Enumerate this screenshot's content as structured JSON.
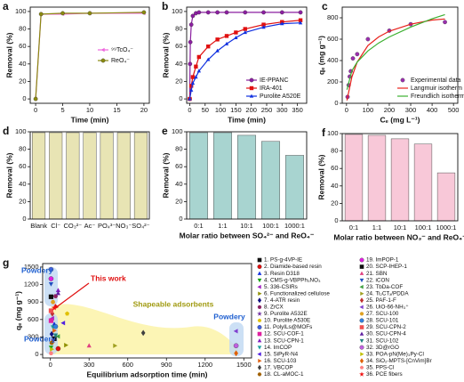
{
  "chart_data": [
    {
      "type": "line",
      "panel": "a",
      "xlabel": "Time (min)",
      "ylabel": "Removal (%)",
      "xlim": [
        -1,
        21
      ],
      "xticks": [
        0,
        5,
        10,
        15,
        20
      ],
      "ylim": [
        -5,
        105
      ],
      "yticks": [
        0,
        20,
        40,
        60,
        80,
        100
      ],
      "legend": "center right",
      "series": [
        {
          "name": "⁹⁹TcO₄⁻",
          "color": "#ee66dd",
          "marker": "<",
          "line": true,
          "x": [
            0,
            1,
            5,
            10,
            20
          ],
          "values": [
            0,
            97,
            97,
            98,
            98
          ]
        },
        {
          "name": "ReO₄⁻",
          "color": "#8a8a10",
          "marker": "o",
          "line": true,
          "x": [
            0,
            1,
            5,
            10,
            20
          ],
          "values": [
            0,
            97,
            98,
            98,
            99
          ]
        }
      ]
    },
    {
      "type": "line",
      "panel": "b",
      "xlabel": "Time (min)",
      "ylabel": "Removal (%)",
      "xlim": [
        -10,
        380
      ],
      "xticks": [
        0,
        50,
        100,
        150,
        200,
        250,
        300,
        350
      ],
      "ylim": [
        -5,
        105
      ],
      "yticks": [
        0,
        20,
        40,
        60,
        80,
        100
      ],
      "legend": "lower right",
      "series": [
        {
          "name": "IE-PPANC",
          "color": "#8b1fa0",
          "marker": "o",
          "line": true,
          "x": [
            0,
            1,
            2,
            5,
            10,
            20,
            30,
            60,
            90,
            120,
            180,
            240,
            300,
            360
          ],
          "values": [
            0,
            40,
            65,
            85,
            95,
            98,
            99,
            99,
            99,
            99,
            99,
            99,
            99,
            99
          ]
        },
        {
          "name": "IRA-401",
          "color": "#e01010",
          "marker": "s",
          "line": true,
          "x": [
            0,
            5,
            10,
            20,
            30,
            60,
            90,
            120,
            150,
            180,
            240,
            300,
            360
          ],
          "values": [
            0,
            15,
            25,
            37,
            48,
            60,
            68,
            72,
            76,
            80,
            85,
            88,
            90
          ]
        },
        {
          "name": "Purolite A520E",
          "color": "#1030e0",
          "marker": "^",
          "line": true,
          "x": [
            0,
            5,
            10,
            20,
            30,
            60,
            90,
            120,
            150,
            180,
            240,
            300,
            360
          ],
          "values": [
            0,
            10,
            18,
            25,
            32,
            45,
            55,
            63,
            70,
            76,
            82,
            86,
            87
          ]
        }
      ]
    },
    {
      "type": "line",
      "panel": "c",
      "xlabel": "Cₑ (mg L⁻¹)",
      "ylabel": "qₑ (mg g⁻¹)",
      "xlim": [
        -20,
        520
      ],
      "xticks": [
        0,
        100,
        200,
        300,
        400,
        500
      ],
      "ylim": [
        0,
        900
      ],
      "yticks": [
        0,
        200,
        400,
        600,
        800
      ],
      "legend": "lower right",
      "series": [
        {
          "name": "Experimental data",
          "color": "#9b2fae",
          "marker": "o",
          "line": false,
          "x": [
            5,
            10,
            15,
            20,
            30,
            50,
            100,
            200,
            300,
            460
          ],
          "values": [
            60,
            170,
            250,
            300,
            420,
            460,
            600,
            680,
            740,
            760
          ]
        },
        {
          "name": "Langmuir isotherm",
          "color": "#e8201a",
          "line": true,
          "x": [
            2,
            25,
            50,
            100,
            150,
            200,
            300,
            400,
            460
          ],
          "values": [
            27,
            245,
            386,
            540,
            621,
            675,
            740,
            779,
            789
          ]
        },
        {
          "name": "Freundlich isotherm",
          "color": "#3cb030",
          "line": true,
          "x": [
            2,
            25,
            50,
            100,
            150,
            200,
            300,
            400,
            460
          ],
          "values": [
            127,
            303,
            386,
            490,
            564,
            621,
            713,
            791,
            830
          ]
        }
      ]
    },
    {
      "type": "bar",
      "panel": "d",
      "ylabel": "Removal (%)",
      "color": "#e8e4b4",
      "ylim": [
        0,
        100
      ],
      "yticks": [
        0,
        20,
        40,
        60,
        80,
        100
      ],
      "categories": [
        "Blank",
        "Cl⁻",
        "CO₃²⁻",
        "Ac⁻",
        "PO₄³⁻",
        "NO₃⁻",
        "SO₄²⁻"
      ],
      "values": [
        99,
        99,
        99,
        99,
        99,
        99,
        99
      ]
    },
    {
      "type": "bar",
      "panel": "e",
      "xlabel": "Molar ratio between SO₄²⁻ and ReO₄⁻",
      "ylabel": "Removal (%)",
      "color": "#a8d4d0",
      "ylim": [
        0,
        100
      ],
      "yticks": [
        0,
        20,
        40,
        60,
        80,
        100
      ],
      "categories": [
        "0:1",
        "1:1",
        "10:1",
        "100:1",
        "1000:1"
      ],
      "values": [
        99,
        99,
        96,
        89,
        73
      ]
    },
    {
      "type": "bar",
      "panel": "f",
      "xlabel": "Molar ratio between NO₃⁻ and ReO₄⁻",
      "ylabel": "Removal (%)",
      "color": "#f8c8d8",
      "ylim": [
        0,
        100
      ],
      "yticks": [
        0,
        20,
        40,
        60,
        80,
        100
      ],
      "categories": [
        "0:1",
        "1:1",
        "10:1",
        "100:1",
        "1000:1"
      ],
      "values": [
        99,
        98,
        94,
        88,
        55
      ]
    },
    {
      "type": "scatter",
      "panel": "g",
      "xlabel": "Equilibrium adsorption time (min)",
      "ylabel": "qₑ (mg g⁻¹)",
      "xlim": [
        -60,
        1560
      ],
      "xticks": [
        0,
        300,
        600,
        900,
        1200,
        1500
      ],
      "ylim": [
        -60,
        1560
      ],
      "yticks": [
        0,
        300,
        600,
        900,
        1200,
        1500
      ],
      "legend": "outside right",
      "annotations": [
        "Powdery",
        "This work",
        "Shapeable adsorbents",
        "Powdery",
        "Powdery"
      ],
      "series": [
        {
          "name": "1. PS-g-4VP-IE",
          "color": "#111111",
          "marker": "s",
          "x": [
            30
          ],
          "values": [
            270
          ]
        },
        {
          "name": "2. Diamide-based resin",
          "color": "#e01010",
          "marker": "o",
          "x": [
            60
          ],
          "values": [
            100
          ]
        },
        {
          "name": "3. Resin D318",
          "color": "#1030e0",
          "marker": "^",
          "x": [
            30
          ],
          "values": [
            520
          ]
        },
        {
          "name": "4. CMS-g-VBPPh₃NO₃",
          "color": "#10a010",
          "marker": "v",
          "x": [
            5
          ],
          "values": [
            120
          ]
        },
        {
          "name": "5. 336-CSIRs",
          "color": "#a020c0",
          "marker": "<",
          "x": [
            15
          ],
          "values": [
            620
          ]
        },
        {
          "name": "6. Functionalized cellulose",
          "color": "#909000",
          "marker": ">",
          "x": [
            120
          ],
          "values": [
            160
          ]
        },
        {
          "name": "7. 4-ATR resin",
          "color": "#101080",
          "marker": "d",
          "x": [
            10
          ],
          "values": [
            350
          ]
        },
        {
          "name": "8. ZrCX",
          "color": "#8a2060",
          "marker": "h",
          "x": [
            40
          ],
          "values": [
            1000
          ]
        },
        {
          "name": "9. Purolite A532E",
          "color": "#7030a0",
          "marker": "*",
          "x": [
            20
          ],
          "values": [
            240
          ]
        },
        {
          "name": "10. Purolite A530E",
          "color": "#e0c000",
          "marker": "p",
          "x": [
            130
          ],
          "values": [
            700
          ]
        },
        {
          "name": "11. PolyILs@MOFs",
          "color": "#4060e0",
          "marker": "o",
          "x": [
            5
          ],
          "values": [
            1460
          ]
        },
        {
          "name": "12. SCU-COF-1",
          "color": "#e020a0",
          "marker": "s",
          "x": [
            5
          ],
          "values": [
            580
          ]
        },
        {
          "name": "13. SCU-CPN-1",
          "color": "#8020c0",
          "marker": "^",
          "x": [
            60
          ],
          "values": [
            1100
          ]
        },
        {
          "name": "14. ImCOP",
          "color": "#20a0a0",
          "marker": "v",
          "x": [
            20
          ],
          "values": [
            470
          ]
        },
        {
          "name": "15. SiPyR-N4",
          "color": "#5020e0",
          "marker": "<",
          "x": [
            100
          ],
          "values": [
            540
          ]
        },
        {
          "name": "16. SCU-103",
          "color": "#e06010",
          "marker": ">",
          "x": [
            30
          ],
          "values": [
            410
          ]
        },
        {
          "name": "17. VBCOP",
          "color": "#404040",
          "marker": "d",
          "x": [
            720
          ],
          "values": [
            370
          ]
        },
        {
          "name": "18. CL-aMOC-1",
          "color": "#a06000",
          "marker": "h",
          "x": [
            10
          ],
          "values": [
            200
          ]
        },
        {
          "name": "19. ImPOP-1",
          "color": "#e020e0",
          "marker": "o",
          "x": [
            5
          ],
          "values": [
            1300
          ]
        },
        {
          "name": "20. SCP-IHEP-1",
          "color": "#101010",
          "marker": "s",
          "x": [
            5
          ],
          "values": [
            990
          ]
        },
        {
          "name": "21. SBN",
          "color": "#e04080",
          "marker": "^",
          "x": [
            300
          ],
          "values": [
            150
          ]
        },
        {
          "name": "22. iCON",
          "color": "#2050c0",
          "marker": "v",
          "x": [
            5
          ],
          "values": [
            1210
          ]
        },
        {
          "name": "23. TbDa-COF",
          "color": "#40a040",
          "marker": "<",
          "x": [
            60
          ],
          "values": [
            310
          ]
        },
        {
          "name": "24. Ti₂CTₓ/PDDA",
          "color": "#a0a020",
          "marker": ">",
          "x": [
            500
          ],
          "values": [
            150
          ]
        },
        {
          "name": "25. PAF-1-F",
          "color": "#c03030",
          "marker": "d",
          "x": [
            15
          ],
          "values": [
            700
          ]
        },
        {
          "name": "26. UiO-66-NH₃⁺",
          "color": "#8040d0",
          "marker": "<",
          "x": [
            1440
          ],
          "values": [
            400
          ]
        },
        {
          "name": "27. SCU-100",
          "color": "#e0a020",
          "marker": "h",
          "x": [
            20
          ],
          "values": [
            900
          ]
        },
        {
          "name": "28. SCU-101",
          "color": "#3080e0",
          "marker": "o",
          "x": [
            40
          ],
          "values": [
            480
          ]
        },
        {
          "name": "29. SCU-CPN-2",
          "color": "#f05050",
          "marker": "s",
          "x": [
            5
          ],
          "values": [
            750
          ]
        },
        {
          "name": "30. SCU-CPN-4",
          "color": "#6020a0",
          "marker": "^",
          "x": [
            60
          ],
          "values": [
            1050
          ]
        },
        {
          "name": "31. SCU-102",
          "color": "#208080",
          "marker": "v",
          "x": [
            40
          ],
          "values": [
            330
          ]
        },
        {
          "name": "32. 3D@rGO",
          "color": "#c060e0",
          "marker": "o",
          "x": [
            1440
          ],
          "values": [
            150
          ]
        },
        {
          "name": "33. POA-pN(Me)₃Py-Cl",
          "color": "#c0c000",
          "marker": ">",
          "x": [
            10
          ],
          "values": [
            90
          ]
        },
        {
          "name": "34. SiO₂-MPTS-[CnVim]Br",
          "color": "#e06000",
          "marker": "d",
          "x": [
            1440
          ],
          "values": [
            20
          ]
        },
        {
          "name": "35. PPS-Cl",
          "color": "#ff8080",
          "marker": "p",
          "x": [
            5
          ],
          "values": [
            20
          ]
        },
        {
          "name": "36. PCE fibers",
          "color": "#f01010",
          "marker": "*",
          "x": [
            30
          ],
          "values": [
            800
          ]
        }
      ]
    }
  ]
}
